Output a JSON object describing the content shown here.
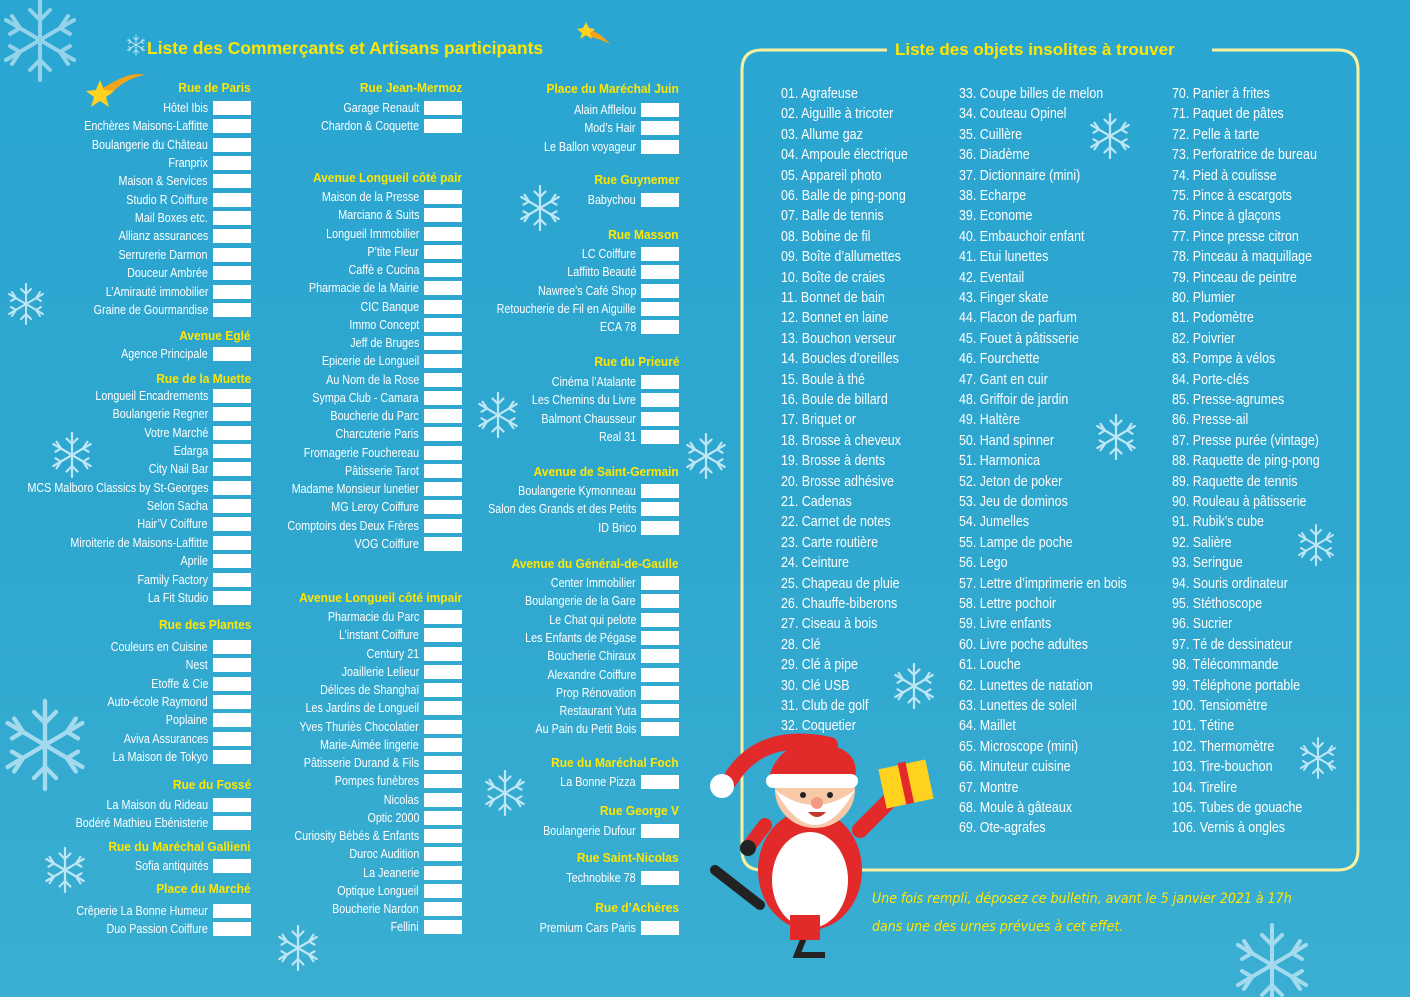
{
  "merchants": {
    "title": "Liste des Commerçants et Artisans participants",
    "columns": [
      {
        "sections": [
          {
            "title": "Rue de Paris",
            "shops": [
              "Hôtel Ibis",
              "Enchères Maisons-Laffitte",
              "Boulangerie du Château",
              "Franprix",
              "Maison & Services",
              "Studio R Coiffure",
              "Mail Boxes etc.",
              "Allianz assurances",
              "Serrurerie Darmon",
              "Douceur Ambrée",
              "L’Amirauté immobilier",
              "Graine de Gourmandise"
            ]
          },
          {
            "title": "Avenue Eglé",
            "shops": [
              "Agence Principale"
            ]
          },
          {
            "title": "Rue de la Muette",
            "shops": [
              "Longueil Encadrements",
              "Boulangerie Regner",
              "Votre Marché",
              "Edarga",
              "City Nail Bar",
              "MCS Malboro Classics by St-Georges",
              "Selon Sacha",
              "Hair’V Coiffure",
              "Miroiterie de Maisons-Laffitte",
              "Aprile",
              "Family Factory",
              "La Fit Studio"
            ]
          },
          {
            "title": "Rue des Plantes",
            "shops": [
              "Couleurs en Cuisine",
              "Nest",
              "Etoffe & Cie",
              "Auto-école Raymond",
              "Poplaine",
              "Aviva Assurances",
              "La Maison de Tokyo"
            ]
          },
          {
            "title": "Rue du Fossé",
            "shops": [
              "La Maison du Rideau",
              "Bodéré Mathieu Ebénisterie"
            ]
          },
          {
            "title": "Rue du Maréchal Gallieni",
            "shops": [
              "Sofia antiquités"
            ]
          },
          {
            "title": "Place du Marché",
            "shops": [
              "Crêperie La Bonne Humeur",
              "Duo Passion Coiffure"
            ]
          }
        ]
      },
      {
        "sections": [
          {
            "title": "Rue Jean-Mermoz",
            "shops": [
              "Garage Renault",
              "Chardon & Coquette"
            ]
          },
          {
            "title": "Avenue Longueil côté pair",
            "shops": [
              "Maison de la Presse",
              "Marciano & Suits",
              "Longueil Immobilier",
              "P’tite Fleur",
              "Caffè e Cucina",
              "Pharmacie de la Mairie",
              "CIC Banque",
              "Immo Concept",
              "Jeff de Bruges",
              "Epicerie de Longueil",
              "Au Nom de la Rose",
              "Sympa Club - Camara",
              "Boucherie du Parc",
              "Charcuterie Paris",
              "Fromagerie Fouchereau",
              "Pâtisserie Tarot",
              "Madame Monsieur lunetier",
              "MG Leroy Coiffure",
              "Comptoirs des Deux Frères",
              "VOG Coiffure"
            ]
          },
          {
            "title": "Avenue Longueil côté impair",
            "shops": [
              "Pharmacie du Parc",
              "L’instant Coiffure",
              "Century 21",
              "Joaillerie Lelieur",
              "Délices de Shanghaï",
              "Les Jardins de Longueil",
              "Yves Thuriès Chocolatier",
              "Marie-Aimée lingerie",
              "Pâtisserie Durand & Fils",
              "Pompes funèbres",
              "Nicolas",
              "Optic 2000",
              "Curiosity Bébés & Enfants",
              "Duroc Audition",
              "La Jeanerie",
              "Optique Longueil",
              "Boucherie Nardon",
              "Fellini"
            ]
          }
        ]
      },
      {
        "sections": [
          {
            "title": "Place du Maréchal Juin",
            "shops": [
              "Alain Afflelou",
              "Mod’s Hair",
              "Le Ballon voyageur"
            ]
          },
          {
            "title": "Rue Guynemer",
            "shops": [
              "Babychou"
            ]
          },
          {
            "title": "Rue Masson",
            "shops": [
              "LC Coiffure",
              "Laffitto Beauté",
              "Nawree’s Café Shop",
              "Retoucherie de Fil en Aiguille",
              "ECA 78"
            ]
          },
          {
            "title": "Rue du Prieuré",
            "shops": [
              "Cinéma l’Atalante",
              "Les Chemins du Livre",
              "Balmont Chausseur",
              "Real 31"
            ]
          },
          {
            "title": "Avenue de Saint-Germain",
            "shops": [
              "Boulangerie Kymonneau",
              "Salon des Grands et des Petits",
              "ID Brico"
            ]
          },
          {
            "title": "Avenue du Général-de-Gaulle",
            "shops": [
              "Center Immobilier",
              "Boulangerie de la Gare",
              "Le Chat qui pelote",
              "Les Enfants de Pégase",
              "Boucherie Chiraux",
              "Alexandre Coiffure",
              "Prop Rénovation",
              "Restaurant Yuta",
              "Au Pain du Petit Bois"
            ]
          },
          {
            "title": "Rue du Maréchal Foch",
            "shops": [
              "La Bonne Pizza"
            ]
          },
          {
            "title": "Rue George V",
            "shops": [
              "Boulangerie Dufour"
            ]
          },
          {
            "title": "Rue Saint-Nicolas",
            "shops": [
              "Technobike 78"
            ]
          },
          {
            "title": "Rue d’Achères",
            "shops": [
              "Premium Cars Paris"
            ]
          }
        ]
      }
    ]
  },
  "objects": {
    "title": "Liste des objets insolites à trouver",
    "columns": [
      [
        "01. Agrafeuse",
        "02. Aiguille à tricoter",
        "03. Allume gaz",
        "04. Ampoule électrique",
        "05. Appareil photo",
        "06. Balle de ping-pong",
        "07. Balle de tennis",
        "08. Bobine de fil",
        "09. Boîte d’allumettes",
        "10. Boîte de craies",
        "11. Bonnet de bain",
        "12. Bonnet en laine",
        "13. Bouchon verseur",
        "14. Boucles d’oreilles",
        "15. Boule à thé",
        "16. Boule de billard",
        "17. Briquet or",
        "18. Brosse à cheveux",
        "19. Brosse à dents",
        "20. Brosse adhésive",
        "21. Cadenas",
        "22. Carnet de notes",
        "23. Carte routière",
        "24. Ceinture",
        "25. Chapeau de pluie",
        "26. Chauffe-biberons",
        "27. Ciseau à bois",
        "28. Clé",
        "29. Clé à pipe",
        "30. Clé USB",
        "31. Club de golf",
        "32. Coquetier"
      ],
      [
        "33. Coupe billes de melon",
        "34. Couteau Opinel",
        "35. Cuillère",
        "36. Diadème",
        "37. Dictionnaire (mini)",
        "38. Echarpe",
        "39. Econome",
        "40. Embauchoir enfant",
        "41. Etui lunettes",
        "42. Eventail",
        "43. Finger skate",
        "44. Flacon de parfum",
        "45. Fouet à pâtisserie",
        "46. Fourchette",
        "47. Gant en cuir",
        "48. Griffoir de jardin",
        "49. Haltère",
        "50. Hand spinner",
        "51. Harmonica",
        "52. Jeton de poker",
        "53. Jeu de dominos",
        "54. Jumelles",
        "55. Lampe de poche",
        "56. Lego",
        "57. Lettre d’imprimerie en bois",
        "58. Lettre pochoir",
        "59. Livre enfants",
        "60. Livre poche adultes",
        "61. Louche",
        "62. Lunettes de natation",
        "63. Lunettes de soleil",
        "64. Maillet",
        "65. Microscope (mini)",
        "66. Minuteur cuisine",
        "67. Montre",
        "68. Moule à gâteaux",
        "69. Ote-agrafes"
      ],
      [
        "70. Panier à frites",
        "71. Paquet de pâtes",
        "72. Pelle à tarte",
        "73. Perforatrice de bureau",
        "74. Pied à coulisse",
        "75. Pince à escargots",
        "76. Pince à glaçons",
        "77. Pince presse citron",
        "78. Pinceau à maquillage",
        "79. Pinceau de peintre",
        "80. Plumier",
        "81. Podomètre",
        "82. Poivrier",
        "83. Pompe à vélos",
        "84. Porte-clés",
        "85. Presse-agrumes",
        "86. Presse-ail",
        "87. Presse purée (vintage)",
        "88. Raquette de ping-pong",
        "89. Raquette de tennis",
        "90. Rouleau à pâtisserie",
        "91. Rubik’s cube",
        "92. Salière",
        "93. Seringue",
        "94. Souris ordinateur",
        "95. Stéthoscope",
        "96. Sucrier",
        "97. Té de dessinateur",
        "98. Télécommande",
        "99. Téléphone portable",
        "100. Tensiomètre",
        "101. Tétine",
        "102. Thermomètre",
        "103. Tire-bouchon",
        "104. Tirelire",
        "105. Tubes de gouache",
        "106. Vernis à ongles"
      ]
    ]
  },
  "note": {
    "lines": [
      "Une fois rempli, déposez ce bulletin, avant le 5 janvier 2021 à 17h",
      "dans une des urnes prévues à cet effet."
    ]
  }
}
